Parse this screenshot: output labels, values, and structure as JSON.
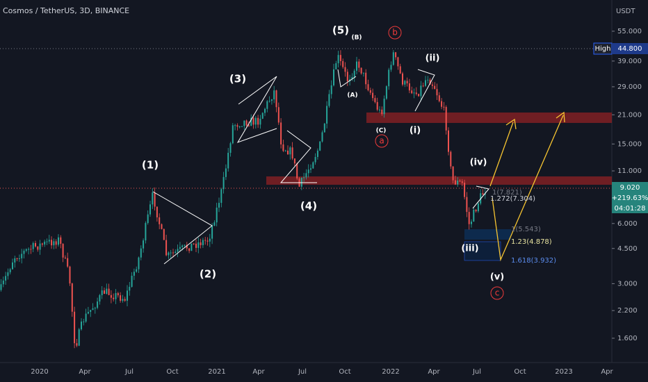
{
  "header": {
    "title": "Cosmos / TetherUS, 3D, BINANCE"
  },
  "price_axis": {
    "unit": "USDT",
    "log_scale": true,
    "ticks": [
      {
        "value": 55,
        "label": "55.000"
      },
      {
        "value": 39,
        "label": "39.000"
      },
      {
        "value": 29,
        "label": "29.000"
      },
      {
        "value": 21,
        "label": "21.000"
      },
      {
        "value": 15,
        "label": "15.000"
      },
      {
        "value": 11,
        "label": "11.000"
      },
      {
        "value": 6,
        "label": "6.000"
      },
      {
        "value": 4.5,
        "label": "4.500"
      },
      {
        "value": 3,
        "label": "3.000"
      },
      {
        "value": 2.2,
        "label": "2.200"
      },
      {
        "value": 1.6,
        "label": "1.600"
      }
    ]
  },
  "time_axis": {
    "labels": [
      "2020",
      "Apr",
      "Jul",
      "Oct",
      "2021",
      "Apr",
      "Jul",
      "Oct",
      "2022",
      "Apr",
      "Jul",
      "Oct",
      "2023",
      "Apr"
    ]
  },
  "high_tag": {
    "label": "High",
    "value": "44.800"
  },
  "price_tag": {
    "price": "9.020",
    "change": "+219.63%",
    "countdown": "04:01:28"
  },
  "annotations": [
    "(1)",
    "(2)",
    "(3)",
    "(4)",
    "(5)",
    "(B)",
    "(A)",
    "(C)",
    "(i)",
    "(ii)",
    "(iii)",
    "(iv)",
    "(v)",
    "a",
    "b",
    "c"
  ],
  "fib_labels": [
    "1(7.821)",
    "1.272(7.304)",
    "1(5.543)",
    "1.23(4.878)",
    "1.618(3.932)"
  ]
}
